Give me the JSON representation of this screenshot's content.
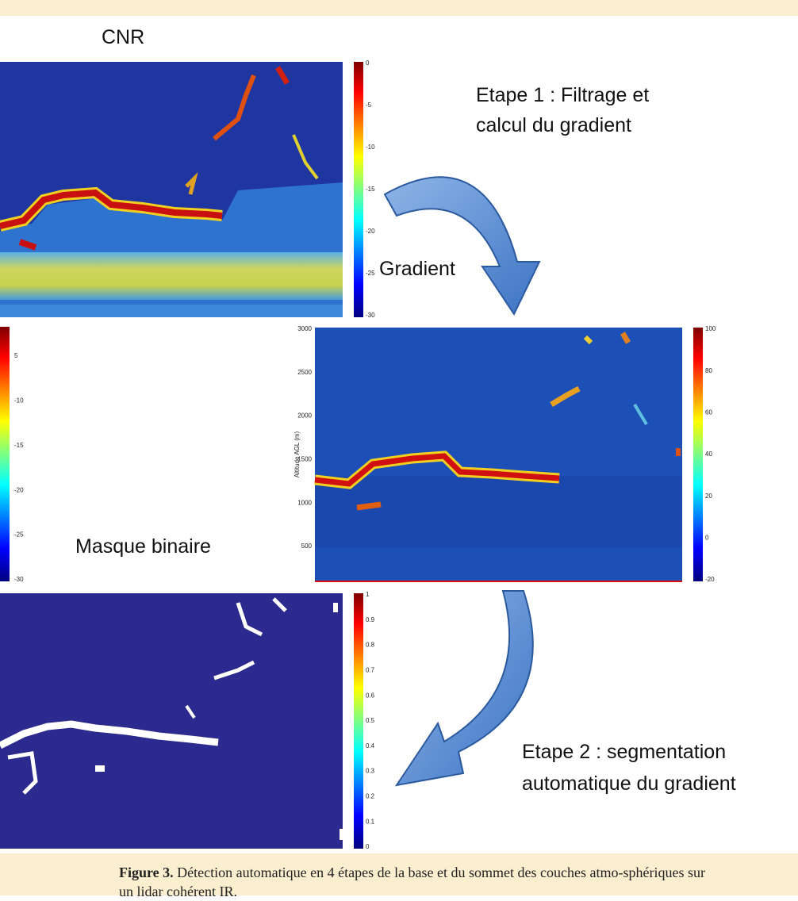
{
  "panels": {
    "cnr": {
      "title": "CNR",
      "colorbar_ticks": [
        0,
        -5,
        -10,
        -15,
        -20,
        -25,
        -30
      ]
    },
    "cnr_copy": {
      "colorbar_ticks": [
        5,
        -10,
        -15,
        -20,
        -25,
        -30
      ]
    },
    "gradient": {
      "title": "Gradient",
      "y_axis_label": "Altitude AGL (m)",
      "yticks": [
        3000,
        2500,
        2000,
        1500,
        1000,
        500
      ],
      "colorbar_ticks": [
        100,
        80,
        60,
        40,
        20,
        0,
        -20
      ]
    },
    "mask": {
      "title": "Masque binaire",
      "colorbar_ticks": [
        1,
        0.9,
        0.8,
        0.7,
        0.6,
        0.5,
        0.4,
        0.3,
        0.2,
        0.1,
        0
      ]
    }
  },
  "steps": [
    {
      "lines": [
        "Etape 1 : Filtrage et",
        "calcul du gradient"
      ]
    },
    {
      "lines": [
        "Etape 2 : segmentation",
        "automatique du gradient"
      ]
    }
  ],
  "caption": {
    "label": "Figure 3.",
    "text": "Détection automatique en 4 étapes de la base et du sommet des couches atmo-sphériques sur un lidar cohérent IR."
  }
}
